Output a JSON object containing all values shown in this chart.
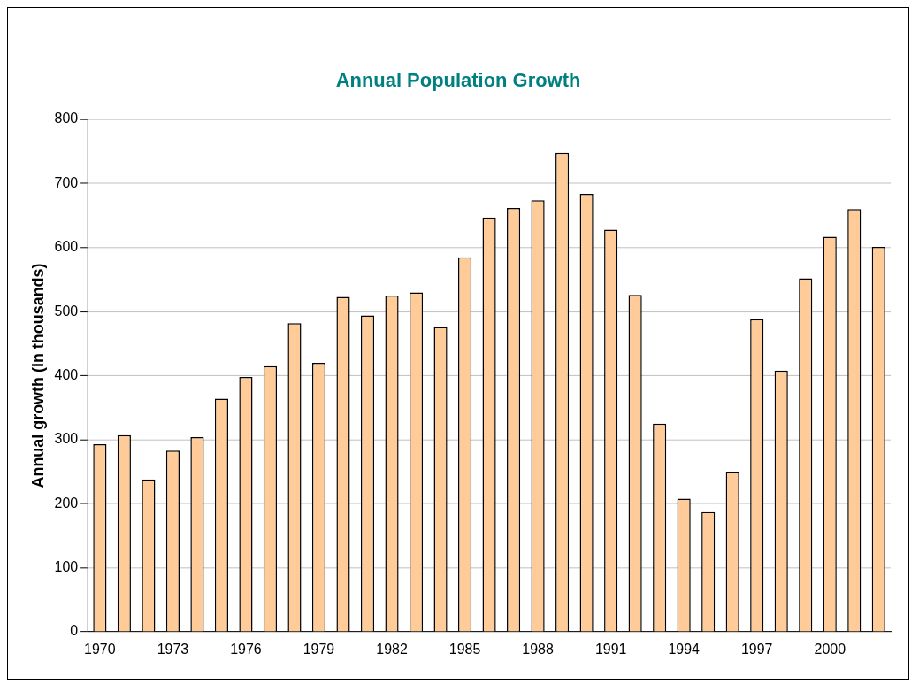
{
  "chart_data": {
    "type": "bar",
    "title": "Annual Population Growth",
    "ylabel": "Annual growth (in thousands)",
    "categories": [
      "1970",
      null,
      null,
      "1973",
      null,
      null,
      "1976",
      null,
      null,
      "1979",
      null,
      null,
      "1982",
      null,
      null,
      "1985",
      null,
      null,
      "1988",
      null,
      null,
      "1991",
      null,
      null,
      "1994",
      null,
      null,
      "1997",
      null,
      null,
      "2000",
      null,
      null
    ],
    "values": [
      293,
      307,
      238,
      283,
      304,
      364,
      398,
      415,
      482,
      420,
      523,
      494,
      525,
      530,
      476,
      585,
      647,
      662,
      674,
      748,
      684,
      628,
      526,
      325,
      208,
      187,
      250,
      488,
      408,
      552,
      617,
      660,
      601
    ],
    "color": "#ffcc99",
    "ylim": [
      0,
      800
    ],
    "yticks": [
      0,
      100,
      200,
      300,
      400,
      500,
      600,
      700,
      800
    ],
    "grid": "y",
    "legend": false
  }
}
